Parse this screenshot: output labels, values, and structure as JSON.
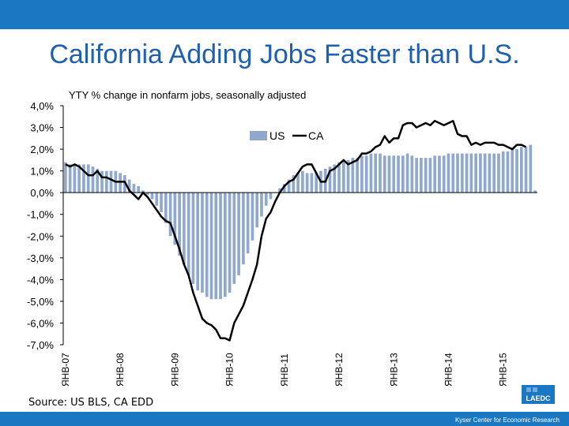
{
  "slide": {
    "title": "California  Adding Jobs Faster than U.S.",
    "source": "Source: US BLS, CA EDD",
    "footer": "Kyser Center for Economic Research",
    "logo_text": "LAEDC"
  },
  "colors": {
    "header_bar": "#1a78c2",
    "title": "#1f5fae",
    "us_bars": "#8fa8cc",
    "ca_line": "#000000"
  },
  "chart_data": {
    "type": "bar",
    "title": "YTY % change in nonfarm jobs, seasonally adjusted",
    "xlabel": "",
    "ylabel": "",
    "ylim": [
      -7,
      4
    ],
    "y_ticks": [
      "4,0%",
      "3,0%",
      "2,0%",
      "1,0%",
      "0,0%",
      "-1,0%",
      "-2,0%",
      "-3,0%",
      "-4,0%",
      "-5,0%",
      "-6,0%",
      "-7,0%"
    ],
    "x_tick_labels": [
      "ЯНВ-07",
      "ЯНВ-08",
      "ЯНВ-09",
      "ЯНВ-10",
      "ЯНВ-11",
      "ЯНВ-12",
      "ЯНВ-13",
      "ЯНВ-14",
      "ЯНВ-15"
    ],
    "legend": {
      "placement": "top-center"
    },
    "series": [
      {
        "name": "US",
        "kind": "bar",
        "values": [
          1.4,
          1.3,
          1.3,
          1.3,
          1.3,
          1.3,
          1.2,
          1.1,
          1.0,
          1.0,
          1.0,
          1.0,
          0.9,
          0.8,
          0.6,
          0.4,
          0.3,
          0.1,
          -0.1,
          -0.3,
          -0.6,
          -0.9,
          -1.4,
          -2.0,
          -2.4,
          -2.9,
          -3.3,
          -3.8,
          -4.2,
          -4.5,
          -4.6,
          -4.8,
          -4.9,
          -4.9,
          -4.9,
          -4.8,
          -4.6,
          -4.2,
          -3.8,
          -3.3,
          -2.8,
          -2.2,
          -1.6,
          -1.1,
          -0.6,
          -0.3,
          0.0,
          0.2,
          0.4,
          0.6,
          0.8,
          0.9,
          1.0,
          0.9,
          0.9,
          0.9,
          1.0,
          1.1,
          1.2,
          1.3,
          1.4,
          1.5,
          1.5,
          1.6,
          1.6,
          1.7,
          1.7,
          1.8,
          1.8,
          1.8,
          1.7,
          1.7,
          1.7,
          1.7,
          1.7,
          1.8,
          1.7,
          1.6,
          1.6,
          1.6,
          1.6,
          1.7,
          1.7,
          1.7,
          1.8,
          1.8,
          1.8,
          1.8,
          1.8,
          1.8,
          1.8,
          1.8,
          1.8,
          1.8,
          1.8,
          1.8,
          1.9,
          1.9,
          2.0,
          2.0,
          2.1,
          2.1,
          2.2,
          0.1
        ]
      },
      {
        "name": "CA",
        "kind": "line",
        "values": [
          1.3,
          1.2,
          1.3,
          1.2,
          1.0,
          0.8,
          0.8,
          1.0,
          0.7,
          0.7,
          0.6,
          0.5,
          0.5,
          0.5,
          0.1,
          -0.1,
          -0.3,
          0.0,
          -0.2,
          -0.5,
          -0.8,
          -1.1,
          -1.3,
          -1.4,
          -2.0,
          -2.6,
          -3.3,
          -3.8,
          -4.6,
          -5.2,
          -5.8,
          -6.0,
          -6.1,
          -6.3,
          -6.7,
          -6.7,
          -6.8,
          -6.0,
          -5.6,
          -5.2,
          -4.6,
          -4.0,
          -3.3,
          -2.0,
          -1.2,
          -0.9,
          -0.4,
          0.0,
          0.3,
          0.5,
          0.6,
          0.9,
          1.2,
          1.3,
          1.3,
          0.9,
          0.5,
          0.5,
          1.0,
          1.1,
          1.3,
          1.5,
          1.3,
          1.4,
          1.5,
          1.8,
          1.8,
          1.9,
          2.1,
          2.2,
          2.6,
          2.3,
          2.5,
          2.5,
          3.1,
          3.2,
          3.2,
          3.0,
          3.1,
          3.2,
          3.1,
          3.3,
          3.2,
          3.1,
          3.2,
          3.3,
          2.7,
          2.6,
          2.6,
          2.2,
          2.3,
          2.2,
          2.3,
          2.3,
          2.3,
          2.2,
          2.2,
          2.1,
          2.0,
          2.2,
          2.2,
          2.1
        ]
      }
    ]
  }
}
